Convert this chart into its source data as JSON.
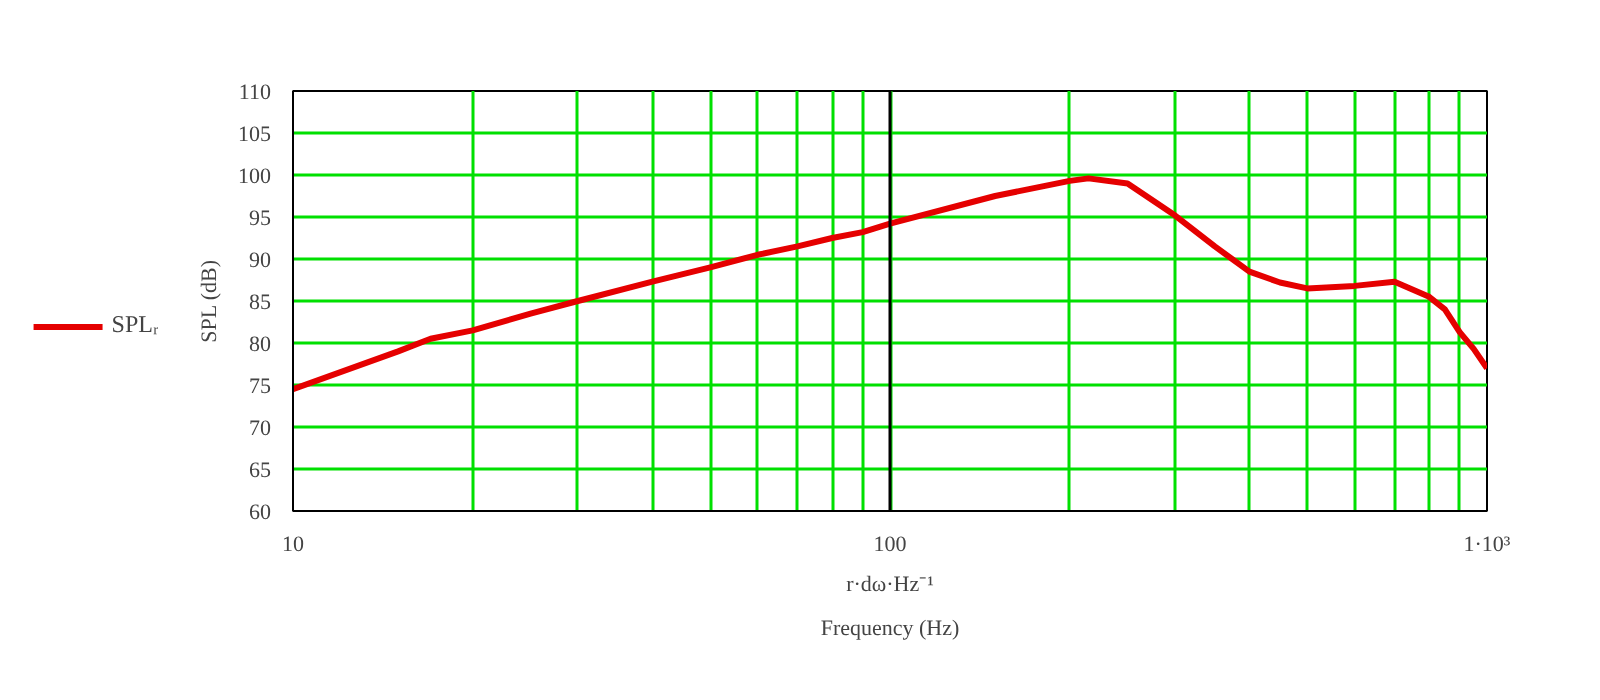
{
  "chart_data": {
    "type": "line",
    "xlabel": "r·dω·Hz⁻¹",
    "ylabel": "SPL (dB)",
    "annotations": [
      "Frequency (Hz)"
    ],
    "log": "x",
    "grid": true,
    "legend": "left",
    "marker": "none",
    "line_style": "solid",
    "x": [
      10,
      15,
      17,
      20,
      25,
      30,
      40,
      50,
      60,
      70,
      80,
      90,
      100,
      150,
      200,
      215,
      250,
      300,
      350,
      400,
      450,
      500,
      600,
      700,
      800,
      850,
      900,
      950,
      1000
    ],
    "series": [
      {
        "name": "SPLᵣ",
        "color": "#e50000",
        "values": [
          74.5,
          79,
          80.5,
          81.5,
          83.5,
          85,
          87.3,
          89,
          90.5,
          91.5,
          92.5,
          93.2,
          94.2,
          97.5,
          99.3,
          99.6,
          99,
          95.2,
          91.5,
          88.5,
          87.2,
          86.5,
          86.8,
          87.3,
          85.5,
          84,
          81.3,
          79.3,
          77
        ]
      }
    ],
    "xlim": [
      10,
      1000
    ],
    "ylim": [
      60,
      110
    ],
    "xticks": [
      10,
      {
        "value": 20,
        "label": null
      },
      {
        "value": 30,
        "label": null
      },
      {
        "value": 40,
        "label": null
      },
      {
        "value": 50,
        "label": null
      },
      {
        "value": 60,
        "label": null
      },
      {
        "value": 70,
        "label": null
      },
      {
        "value": 80,
        "label": null
      },
      {
        "value": 90,
        "label": null
      },
      100,
      {
        "value": 200,
        "label": null
      },
      {
        "value": 300,
        "label": null
      },
      {
        "value": 400,
        "label": null
      },
      {
        "value": 500,
        "label": null
      },
      {
        "value": 600,
        "label": null
      },
      {
        "value": 700,
        "label": null
      },
      {
        "value": 800,
        "label": null
      },
      {
        "value": 900,
        "label": null
      },
      {
        "value": 1000,
        "label": "1·10³"
      }
    ],
    "yticks": [
      60,
      65,
      70,
      75,
      80,
      85,
      90,
      95,
      100,
      105,
      110
    ],
    "ref_lines": [
      {
        "axis": "x",
        "value": 100,
        "color": "#000000"
      }
    ]
  }
}
